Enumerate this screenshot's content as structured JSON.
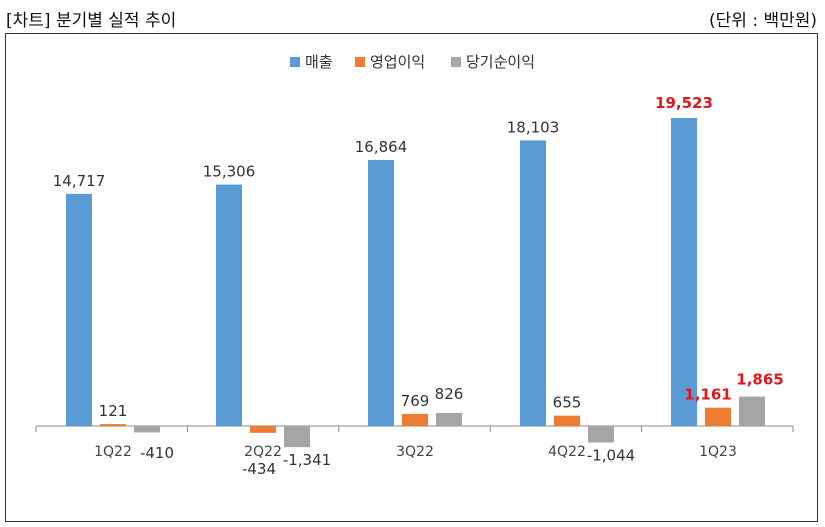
{
  "header": {
    "title": "[차트] 분기별 실적 추이",
    "unit": "(단위 : 백만원)"
  },
  "colors": {
    "매출": "#5b9bd5",
    "영업이익": "#ed7d31",
    "당기순이익": "#a5a5a5",
    "highlight": "#e3161e"
  },
  "chart_data": {
    "type": "bar",
    "categories": [
      "1Q22",
      "2Q22",
      "3Q22",
      "4Q22",
      "1Q23"
    ],
    "series": [
      {
        "name": "매출",
        "values": [
          14717,
          15306,
          16864,
          18103,
          19523
        ],
        "labels": [
          "14,717",
          "15,306",
          "16,864",
          "18,103",
          "19,523"
        ]
      },
      {
        "name": "영업이익",
        "values": [
          121,
          -434,
          769,
          655,
          1161
        ],
        "labels": [
          "121",
          "-434",
          "769",
          "655",
          "1,161"
        ]
      },
      {
        "name": "당기순이익",
        "values": [
          -410,
          -1341,
          826,
          -1044,
          1865
        ],
        "labels": [
          "-410",
          "-1,341",
          "826",
          "-1,044",
          "1,865"
        ]
      }
    ],
    "highlight_category": "1Q23",
    "legend": "top-center",
    "grid": false
  }
}
